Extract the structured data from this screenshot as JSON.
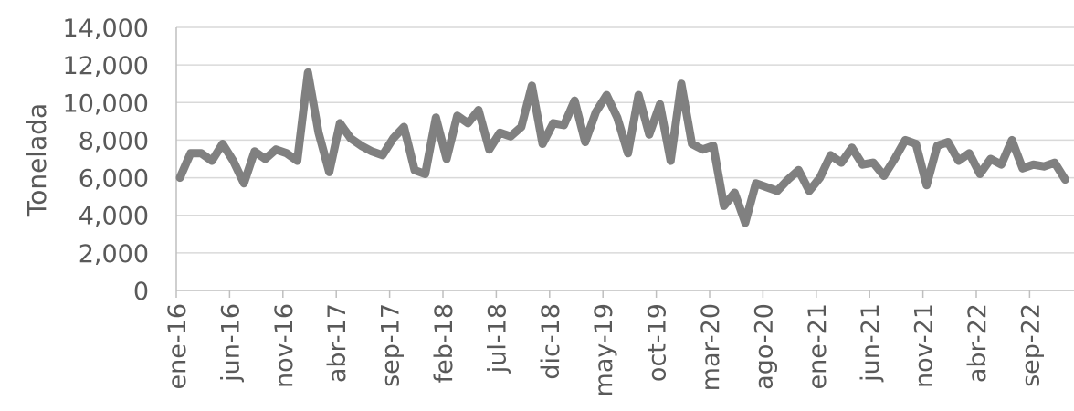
{
  "chart_data": {
    "type": "line",
    "title": "",
    "xlabel": "",
    "ylabel": "Tonelada",
    "ylim": [
      0,
      14000
    ],
    "yticks": [
      0,
      2000,
      4000,
      6000,
      8000,
      10000,
      12000,
      14000
    ],
    "ytick_labels": [
      "0",
      "2,000",
      "4,000",
      "6,000",
      "8,000",
      "10,000",
      "12,000",
      "14,000"
    ],
    "x_tick_labels": [
      "ene-16",
      "jun-16",
      "nov-16",
      "abr-17",
      "sep-17",
      "feb-18",
      "jul-18",
      "dic-18",
      "may-19",
      "oct-19",
      "mar-20",
      "ago-20",
      "ene-21",
      "jun-21",
      "nov-21",
      "abr-22",
      "sep-22"
    ],
    "x_tick_indices": [
      0,
      5,
      10,
      15,
      20,
      25,
      30,
      35,
      40,
      45,
      50,
      55,
      60,
      65,
      70,
      75,
      80
    ],
    "grid": true,
    "series": [
      {
        "color": "#808080",
        "values": [
          6000,
          7300,
          7300,
          6900,
          7800,
          6900,
          5700,
          7400,
          7000,
          7500,
          7300,
          6900,
          11600,
          8400,
          6300,
          8900,
          8100,
          7700,
          7400,
          7200,
          8100,
          8700,
          6400,
          6200,
          9200,
          7000,
          9300,
          8900,
          9600,
          7500,
          8400,
          8200,
          8700,
          10900,
          7800,
          8900,
          8800,
          10100,
          7900,
          9500,
          10400,
          9200,
          7300,
          10400,
          8300,
          9900,
          6900,
          11000,
          7800,
          7500,
          7700,
          4500,
          5200,
          3600,
          5700,
          5500,
          5300,
          5900,
          6400,
          5300,
          6000,
          7200,
          6800,
          7600,
          6700,
          6800,
          6100,
          7000,
          8000,
          7800,
          5600,
          7700,
          7900,
          6900,
          7300,
          6200,
          7000,
          6700,
          8000,
          6500,
          6700,
          6600,
          6800,
          5900
        ]
      }
    ]
  }
}
